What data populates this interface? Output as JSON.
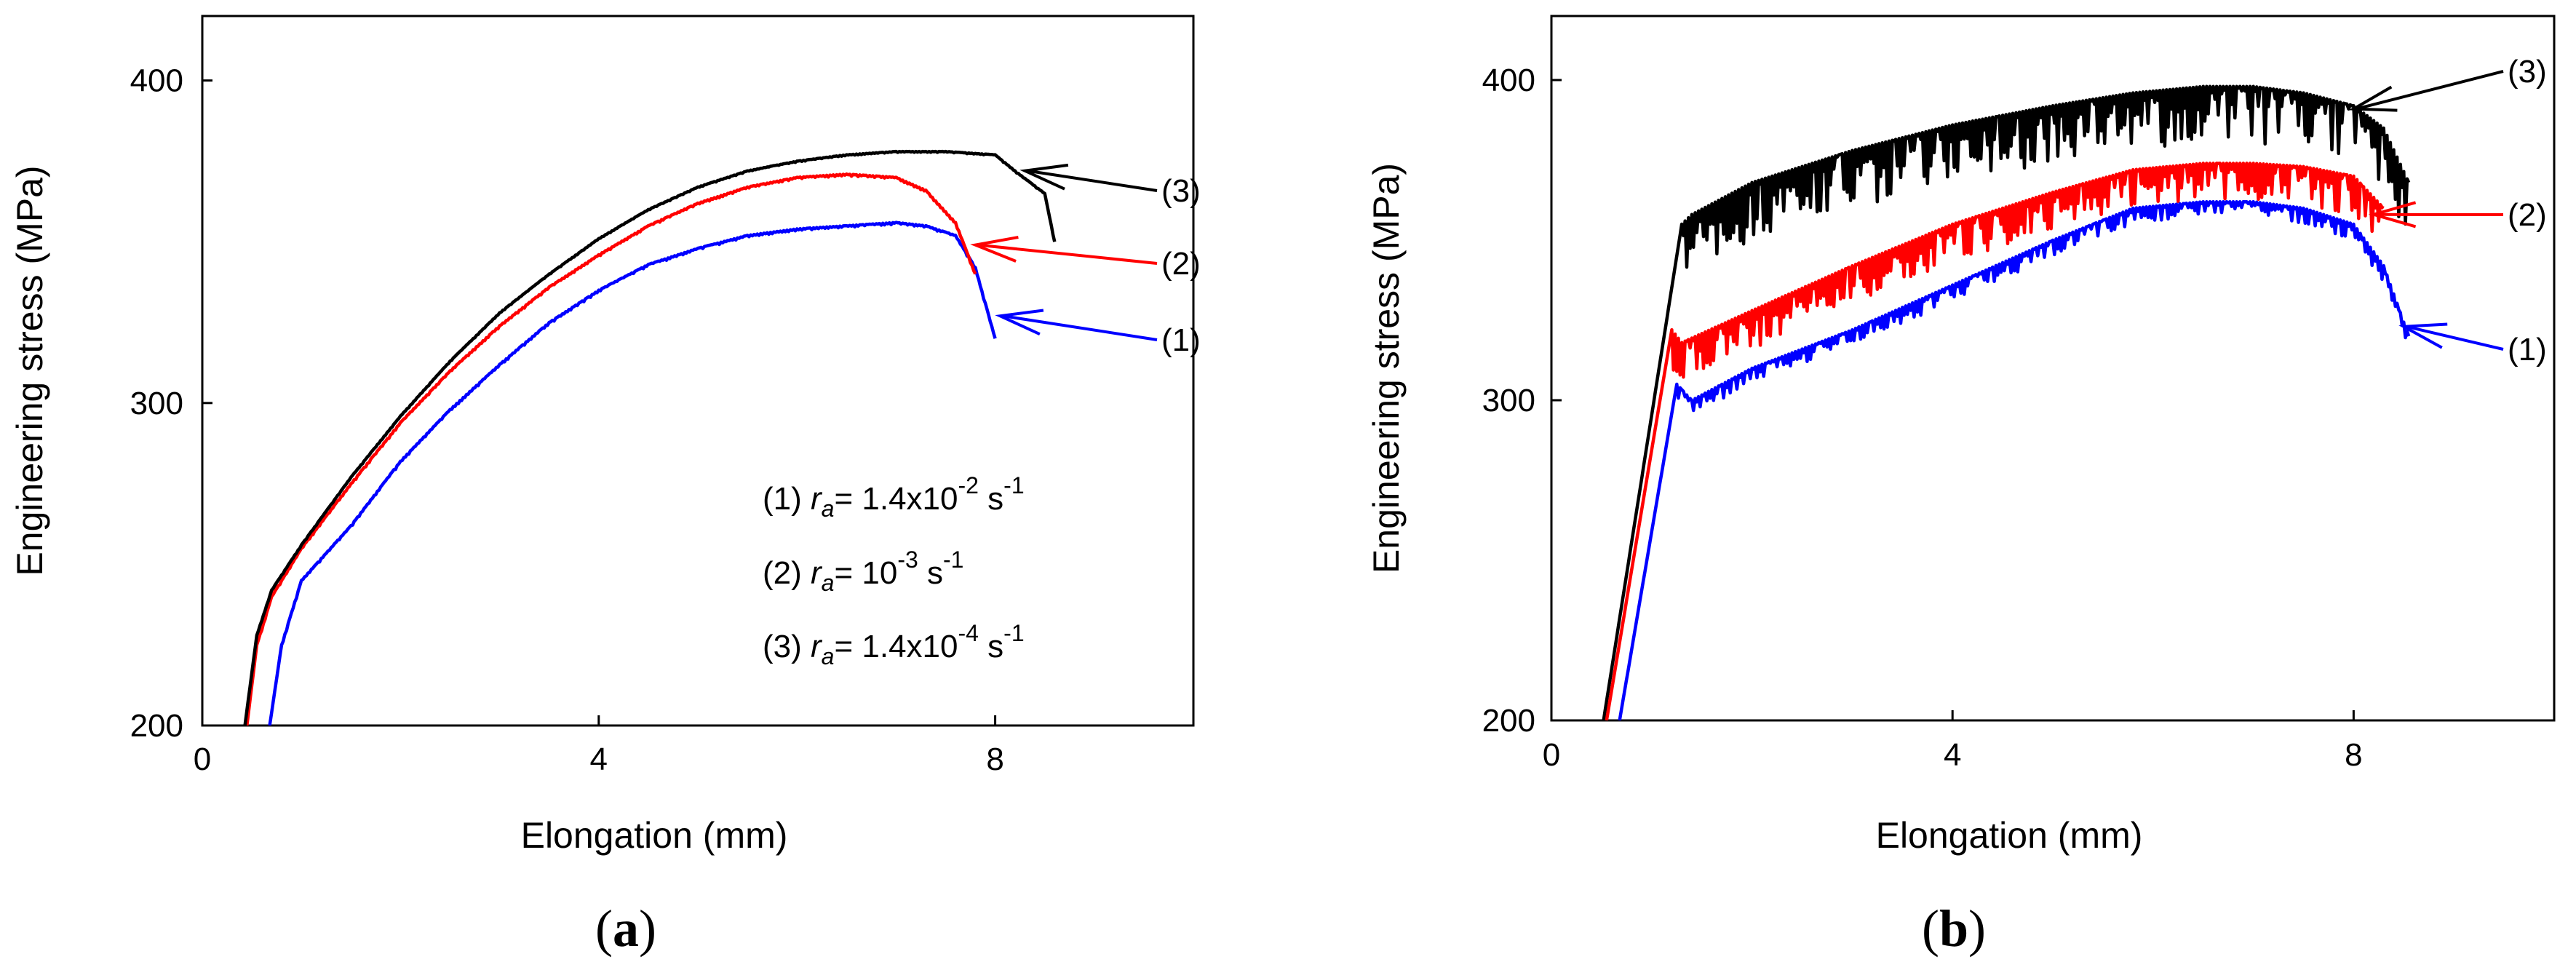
{
  "colors": {
    "series_1": "#0000ff",
    "series_2": "#ff0000",
    "series_3": "#000000"
  },
  "chart_data": [
    {
      "type": "line",
      "panel_label": "a",
      "xlabel": "Elongation (mm)",
      "ylabel": "Engineering stress (MPa)",
      "xlim": [
        0,
        10
      ],
      "ylim": [
        200,
        420
      ],
      "xticks": [
        "0",
        "4",
        "8"
      ],
      "yticks": [
        "200",
        "300",
        "400"
      ],
      "grid": false,
      "legend": {
        "placement": "lower-right",
        "entries": [
          {
            "id": "(1)",
            "prefix": "r",
            "sub": "a",
            "eq": "= ",
            "base": "1.4x10",
            "exp": "-2",
            "unit": " s",
            "unit_exp": "-1"
          },
          {
            "id": "(2)",
            "prefix": "r",
            "sub": "a",
            "eq": "= ",
            "base": "10",
            "exp": "-3",
            "unit": " s",
            "unit_exp": "-1"
          },
          {
            "id": "(3)",
            "prefix": "r",
            "sub": "a",
            "eq": "= ",
            "base": "1.4x10",
            "exp": "-4",
            "unit": " s",
            "unit_exp": "-1"
          }
        ]
      },
      "series": [
        {
          "name": "(1)",
          "color": "#0000ff",
          "noise": 0.6,
          "x": [
            0.68,
            0.8,
            1.0,
            1.5,
            2.0,
            2.5,
            3.0,
            3.5,
            4.0,
            4.5,
            5.0,
            5.5,
            6.0,
            6.5,
            7.0,
            7.3,
            7.6,
            7.8,
            8.0
          ],
          "y": [
            200,
            225,
            245,
            262,
            282,
            298,
            312,
            325,
            335,
            343,
            348,
            352,
            354,
            355,
            356,
            355,
            352,
            342,
            320
          ]
        },
        {
          "name": "(2)",
          "color": "#ff0000",
          "noise": 0.6,
          "x": [
            0.45,
            0.55,
            0.7,
            1.0,
            1.5,
            2.0,
            2.5,
            3.0,
            3.5,
            4.0,
            4.5,
            5.0,
            5.5,
            6.0,
            6.5,
            7.0,
            7.3,
            7.6,
            7.8
          ],
          "y": [
            200,
            225,
            240,
            255,
            275,
            294,
            310,
            324,
            336,
            346,
            355,
            362,
            367,
            370,
            371,
            370,
            366,
            356,
            340
          ]
        },
        {
          "name": "(3)",
          "color": "#000000",
          "noise": 0.3,
          "x": [
            0.43,
            0.55,
            0.7,
            1.0,
            1.5,
            2.0,
            2.5,
            3.0,
            3.5,
            4.0,
            4.5,
            5.0,
            5.5,
            6.0,
            6.5,
            7.0,
            7.5,
            8.0,
            8.2,
            8.5,
            8.6
          ],
          "y": [
            200,
            228,
            242,
            256,
            277,
            296,
            313,
            328,
            340,
            351,
            360,
            367,
            372,
            375,
            377,
            378,
            378,
            377,
            372,
            365,
            350
          ]
        }
      ],
      "callouts": [
        {
          "label": "(3)",
          "color": "#000000",
          "target": [
            8.3,
            372
          ]
        },
        {
          "label": "(2)",
          "color": "#ff0000",
          "target": [
            7.8,
            349
          ]
        },
        {
          "label": "(1)",
          "color": "#0000ff",
          "target": [
            8.05,
            327
          ]
        }
      ]
    },
    {
      "type": "line",
      "panel_label": "b",
      "xlabel": "Elongation (mm)",
      "ylabel": "Engineering stress (MPa)",
      "xlim": [
        0,
        10
      ],
      "ylim": [
        200,
        420
      ],
      "xticks": [
        "0",
        "4",
        "8"
      ],
      "yticks": [
        "200",
        "300",
        "400"
      ],
      "grid": false,
      "series": [
        {
          "name": "(1)",
          "color": "#0000ff",
          "noise": 5,
          "x": [
            0.68,
            1.25,
            1.4,
            2.0,
            3.0,
            4.0,
            5.0,
            5.8,
            6.5,
            7.0,
            7.5,
            8.0,
            8.3,
            8.55
          ],
          "y": [
            200,
            305,
            300,
            310,
            322,
            336,
            350,
            360,
            362,
            362,
            360,
            355,
            342,
            320
          ]
        },
        {
          "name": "(2)",
          "color": "#ff0000",
          "noise": 12,
          "x": [
            0.55,
            1.2,
            1.3,
            2.0,
            3.0,
            4.0,
            5.0,
            5.8,
            6.5,
            7.0,
            7.5,
            8.0,
            8.3
          ],
          "y": [
            200,
            322,
            318,
            328,
            342,
            355,
            365,
            372,
            374,
            374,
            373,
            370,
            360
          ]
        },
        {
          "name": "(3)",
          "color": "#000000",
          "noise": 18,
          "x": [
            0.52,
            1.3,
            1.4,
            2.0,
            3.0,
            4.0,
            5.0,
            5.8,
            6.5,
            7.0,
            7.5,
            8.0,
            8.3,
            8.55
          ],
          "y": [
            200,
            355,
            358,
            368,
            378,
            386,
            392,
            396,
            398,
            398,
            396,
            392,
            385,
            368
          ]
        }
      ],
      "callouts": [
        {
          "label": "(3)",
          "color": "#000000",
          "target": [
            8.0,
            391
          ]
        },
        {
          "label": "(2)",
          "color": "#ff0000",
          "target": [
            8.2,
            358
          ]
        },
        {
          "label": "(1)",
          "color": "#0000ff",
          "target": [
            8.5,
            323
          ]
        }
      ]
    }
  ]
}
